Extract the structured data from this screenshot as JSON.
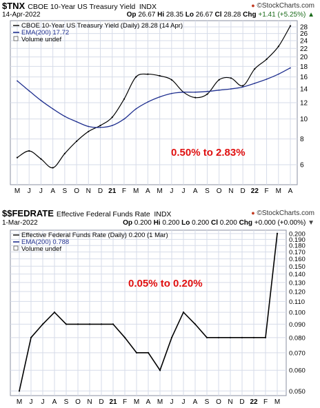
{
  "brand": "©StockCharts.com",
  "colors": {
    "plot_bg": "#ffffff",
    "page_bg": "#e9ecf3",
    "grid": "#d6dbe8",
    "price": "#000000",
    "ema": "#1f2f8f",
    "annotation": "#e01010",
    "up": "#1a6b1a"
  },
  "chart_data": [
    {
      "type": "line",
      "symbol": "$TNX",
      "name": "CBOE 10-Year US Treasury Yield",
      "exchange": "INDX",
      "date": "14-Apr-2022",
      "ohlc": {
        "open_label": "Op",
        "open": "26.67",
        "high_label": "Hi",
        "high": "28.35",
        "low_label": "Lo",
        "low": "26.67",
        "close_label": "Cl",
        "close": "28.28",
        "chg_label": "Chg",
        "chg": "+1.41 (+5.25%)"
      },
      "legend": [
        {
          "text": "CBOE 10-Year US Treasury Yield (Daily) 28.28 (14 Apr)",
          "kind": "price"
        },
        {
          "text": "EMA(200) 17.72",
          "kind": "ema"
        },
        {
          "text": "Volume undef",
          "kind": "none"
        }
      ],
      "annotation": "0.50% to 2.83%",
      "y_scale": "log",
      "ylim": [
        4.8,
        30
      ],
      "yticks": [
        "28",
        "26",
        "24",
        "22",
        "20",
        "18",
        "16",
        "14",
        "12",
        "10",
        "8",
        "6"
      ],
      "x_tick_labels": [
        "M",
        "J",
        "J",
        "A",
        "S",
        "O",
        "N",
        "D",
        "21",
        "F",
        "M",
        "A",
        "M",
        "J",
        "J",
        "A",
        "S",
        "O",
        "N",
        "D",
        "22",
        "F",
        "M",
        "A"
      ],
      "bold_x_ticks": [
        "21",
        "22"
      ],
      "x": [
        "2020-05",
        "2020-06",
        "2020-07",
        "2020-08",
        "2020-09",
        "2020-10",
        "2020-11",
        "2020-12",
        "2021-01",
        "2021-02",
        "2021-03",
        "2021-04",
        "2021-05",
        "2021-06",
        "2021-07",
        "2021-08",
        "2021-09",
        "2021-10",
        "2021-11",
        "2021-12",
        "2022-01",
        "2022-02",
        "2022-03",
        "2022-04"
      ],
      "series": [
        {
          "name": "CBOE 10-Year US Treasury Yield",
          "values": [
            6.5,
            7.0,
            6.4,
            5.8,
            6.8,
            7.8,
            8.7,
            9.3,
            10.2,
            12.5,
            16.0,
            16.5,
            16.2,
            15.5,
            13.5,
            12.7,
            13.2,
            15.5,
            15.8,
            14.5,
            17.5,
            19.5,
            22.5,
            28.3
          ]
        },
        {
          "name": "EMA(200)",
          "values": [
            15.3,
            13.7,
            12.3,
            11.2,
            10.3,
            9.7,
            9.2,
            9.1,
            9.3,
            10.0,
            11.2,
            12.1,
            12.8,
            13.3,
            13.5,
            13.5,
            13.6,
            13.8,
            14.0,
            14.3,
            14.9,
            15.6,
            16.5,
            17.7
          ]
        }
      ]
    },
    {
      "type": "line",
      "symbol": "$$FEDRATE",
      "name": "Effective Federal Funds Rate",
      "exchange": "INDX",
      "date": "1-Mar-2022",
      "ohlc": {
        "open_label": "Op",
        "open": "0.200",
        "high_label": "Hi",
        "high": "0.200",
        "low_label": "Lo",
        "low": "0.200",
        "close_label": "Cl",
        "close": "0.200",
        "chg_label": "Chg",
        "chg": "+0.000 (+0.00%)"
      },
      "legend": [
        {
          "text": "Effective Federal Funds Rate (Daily) 0.200 (1 Mar)",
          "kind": "price"
        },
        {
          "text": "EMA(200) 0.788",
          "kind": "ema"
        },
        {
          "text": "Volume undef",
          "kind": "none"
        }
      ],
      "annotation": "0.05%  to  0.20%",
      "y_scale": "log",
      "ylim": [
        0.048,
        0.206
      ],
      "yticks": [
        "0.200",
        "0.190",
        "0.180",
        "0.170",
        "0.160",
        "0.150",
        "0.140",
        "0.130",
        "0.120",
        "0.110",
        "0.100",
        "0.090",
        "0.080",
        "0.070",
        "0.060",
        "0.050"
      ],
      "x_tick_labels": [
        "M",
        "J",
        "J",
        "A",
        "S",
        "O",
        "N",
        "D",
        "21",
        "F",
        "M",
        "A",
        "M",
        "J",
        "J",
        "A",
        "S",
        "O",
        "N",
        "D",
        "22",
        "F",
        "M"
      ],
      "bold_x_ticks": [
        "21",
        "22"
      ],
      "x": [
        "2020-05",
        "2020-06",
        "2020-07",
        "2020-08",
        "2020-09",
        "2020-10",
        "2020-11",
        "2020-12",
        "2021-01",
        "2021-02",
        "2021-03",
        "2021-04",
        "2021-05",
        "2021-06",
        "2021-07",
        "2021-08",
        "2021-09",
        "2021-10",
        "2021-11",
        "2021-12",
        "2022-01",
        "2022-02",
        "2022-03"
      ],
      "series": [
        {
          "name": "Effective Federal Funds Rate",
          "values": [
            0.05,
            0.08,
            0.09,
            0.1,
            0.09,
            0.09,
            0.09,
            0.09,
            0.09,
            0.08,
            0.07,
            0.07,
            0.06,
            0.08,
            0.1,
            0.09,
            0.08,
            0.08,
            0.08,
            0.08,
            0.08,
            0.08,
            0.2
          ]
        }
      ]
    }
  ]
}
